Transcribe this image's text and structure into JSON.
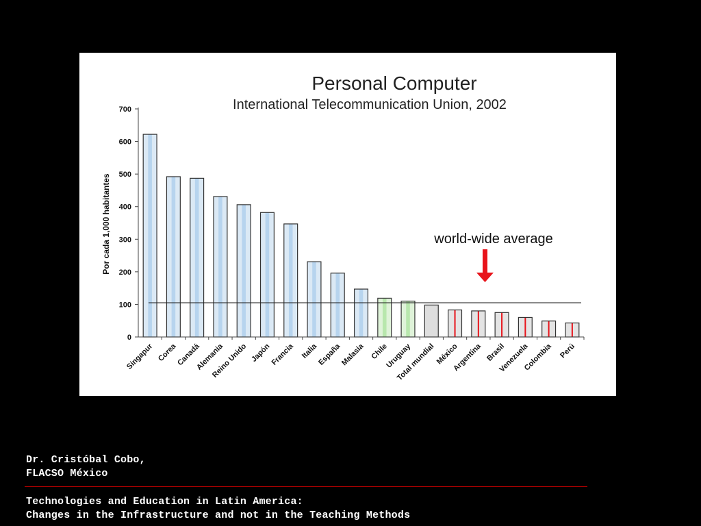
{
  "chart_data": {
    "type": "bar",
    "title": "Personal Computer",
    "subtitle": "International Telecommunication Union, 2002",
    "ylabel": "Por cada 1,000 habitantes",
    "xlabel": "",
    "ylim": [
      0,
      700
    ],
    "yticks": [
      0,
      100,
      200,
      300,
      400,
      500,
      600,
      700
    ],
    "grid": false,
    "categories": [
      "Singapur",
      "Corea",
      "Canadá",
      "Alemania",
      "Reino Unido",
      "Japón",
      "Francia",
      "Italia",
      "España",
      "Malasia",
      "Chile",
      "Uruguay",
      "Total mundial",
      "México",
      "Argentina",
      "Brasil",
      "Venezuela",
      "Colombia",
      "Perú"
    ],
    "values": [
      622,
      492,
      487,
      431,
      406,
      382,
      347,
      231,
      196,
      147,
      119,
      110,
      98,
      83,
      80,
      75,
      60,
      49,
      43
    ],
    "bar_styles": [
      "blue",
      "blue",
      "blue",
      "blue",
      "blue",
      "blue",
      "blue",
      "blue",
      "blue",
      "blue",
      "green",
      "green",
      "gray",
      "red",
      "red",
      "red",
      "red",
      "red",
      "red"
    ],
    "reference_line": {
      "value": 105
    },
    "annotation": {
      "text": "world-wide average",
      "arrow_color": "#e8141b"
    },
    "colors": {
      "blue_fill": "#dbe9f5",
      "blue_stripe": "#b7d4ee",
      "green_fill": "#dff3d9",
      "green_stripe": "#b8e7ad",
      "gray_fill": "#dedede",
      "red_fill": "#e4e4e4",
      "red_stripe": "#e8141b",
      "bar_edge": "#333333"
    }
  },
  "footer": {
    "author_line1": "Dr. Cristóbal Cobo,",
    "author_line2": "FLACSO México",
    "title_line1": "Technologies and Education in Latin America:",
    "title_line2": "Changes in the Infrastructure and not in the Teaching Methods",
    "rule_color": "#b00000"
  }
}
